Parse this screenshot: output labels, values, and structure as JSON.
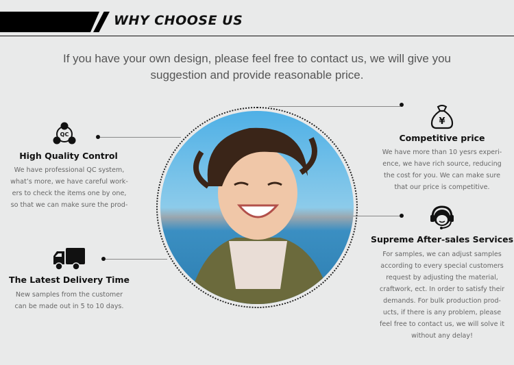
{
  "header": {
    "title": "WHY CHOOSE US"
  },
  "intro": "If you have your own design, please feel free to contact us, we will give you suggestion and provide reasonable price.",
  "features": [
    {
      "icon": "qc-icon",
      "icon_text": "QC",
      "title": "High Quality Control",
      "text": "We have professional QC system,\nwhat’s more, we have careful work-\ners to check the items one by one,\nso that we can make sure the prod-"
    },
    {
      "icon": "truck-icon",
      "title": "The Latest Delivery Time",
      "text": "New samples from the customer\ncan be made out in 5 to 10 days."
    },
    {
      "icon": "money-bag-yen-icon",
      "icon_text": "¥",
      "title": "Competitive price",
      "text": "We have more than 10 yesrs experi-\nence, we have rich source,  reducing\nthe cost for you. We can make sure\nthat our price is competitive."
    },
    {
      "icon": "headset-support-icon",
      "title": "Supreme After-sales Services",
      "text": "For samples, we can adjust samples\naccording to every special customers\nrequest by adjusting the material,\ncraftwork, ect. In order to satisfy their\ndemands. For bulk production prod-\nucts, if there is any problem, please\nfeel free to contact us, we will solve it\nwithout any delay!"
    }
  ]
}
